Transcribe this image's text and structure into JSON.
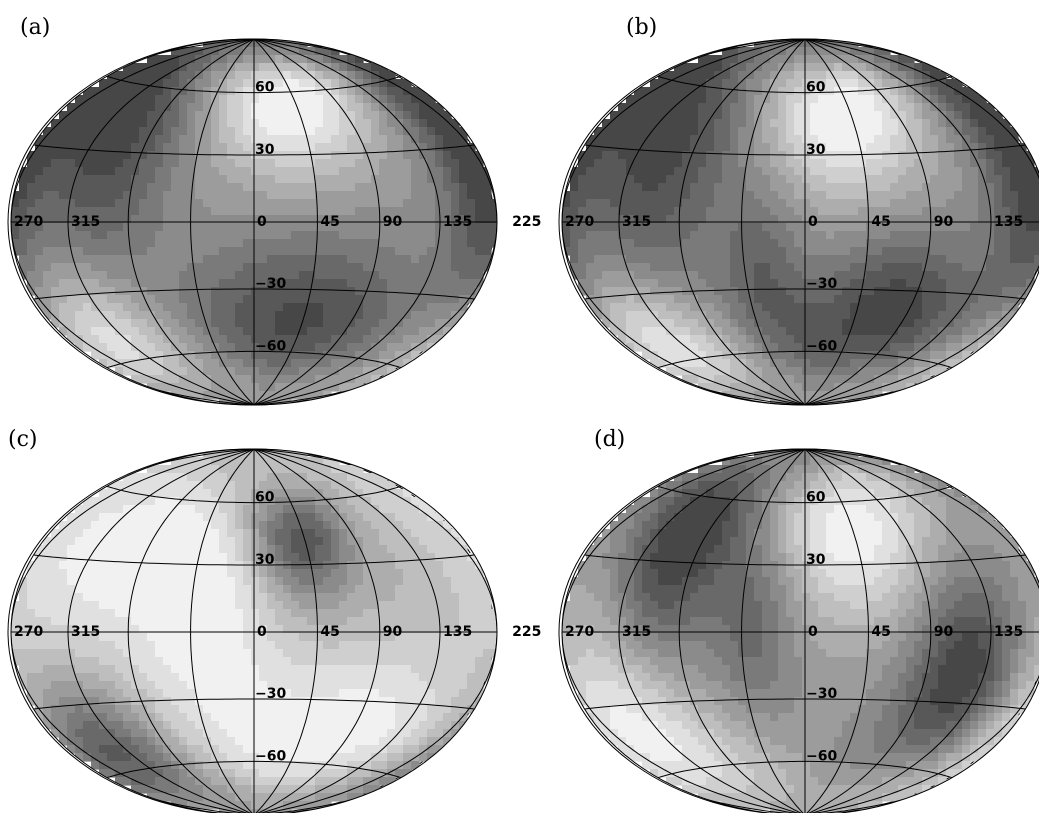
{
  "figure": {
    "projection": "hammer-aitoff",
    "shading": "grayscale contours",
    "grid": {
      "longitude_lines_deg": [
        -150,
        -120,
        -90,
        -60,
        -30,
        0,
        30,
        60,
        90,
        120,
        150
      ],
      "latitude_lines_deg": [
        -60,
        -30,
        0,
        30,
        60
      ],
      "longitude_labels": [
        "225",
        "270",
        "315",
        "0",
        "45",
        "90",
        "135"
      ],
      "latitude_labels": [
        "60",
        "30",
        "−30",
        "−60"
      ]
    },
    "panels": [
      {
        "label": "(a)",
        "dark_regions": [
          {
            "lon": -112,
            "lat": 40,
            "wl": 35,
            "wb": 45,
            "level": 0.85
          },
          {
            "lon": 170,
            "lat": 20,
            "wl": 25,
            "wb": 45,
            "level": 0.85
          },
          {
            "lon": 40,
            "lat": -45,
            "wl": 60,
            "wb": 28,
            "level": 0.8
          }
        ],
        "bright_regions": [
          {
            "lon": 30,
            "lat": 55,
            "wl": 38,
            "wb": 24,
            "level": 1.0
          },
          {
            "lon": -150,
            "lat": -50,
            "wl": 42,
            "wb": 24,
            "level": 1.0
          }
        ]
      },
      {
        "label": "(b)",
        "dark_regions": [
          {
            "lon": -110,
            "lat": 35,
            "wl": 40,
            "wb": 45,
            "level": 0.85
          },
          {
            "lon": 165,
            "lat": 15,
            "wl": 25,
            "wb": 45,
            "level": 0.8
          },
          {
            "lon": 70,
            "lat": -40,
            "wl": 40,
            "wb": 25,
            "level": 0.9
          },
          {
            "lon": -30,
            "lat": -25,
            "wl": 20,
            "wb": 28,
            "level": 0.5
          }
        ],
        "bright_regions": [
          {
            "lon": 30,
            "lat": 50,
            "wl": 38,
            "wb": 26,
            "level": 1.0
          },
          {
            "lon": -155,
            "lat": -50,
            "wl": 38,
            "wb": 22,
            "level": 1.0
          }
        ]
      },
      {
        "label": "(c)",
        "dark_regions": [
          {
            "lon": 35,
            "lat": 42,
            "wl": 22,
            "wb": 18,
            "level": 1.0
          },
          {
            "lon": -145,
            "lat": -50,
            "wl": 30,
            "wb": 22,
            "level": 1.0
          }
        ],
        "bright_regions": [
          {
            "lon": -120,
            "lat": 30,
            "wl": 70,
            "wb": 40,
            "level": 0.8
          },
          {
            "lon": 80,
            "lat": -40,
            "wl": 60,
            "wb": 30,
            "level": 0.8
          },
          {
            "lon": -30,
            "lat": 0,
            "wl": 35,
            "wb": 40,
            "level": 0.6
          }
        ]
      },
      {
        "label": "(d)",
        "dark_regions": [
          {
            "lon": -100,
            "lat": 40,
            "wl": 28,
            "wb": 35,
            "level": 1.0
          },
          {
            "lon": 115,
            "lat": -20,
            "wl": 30,
            "wb": 30,
            "level": 1.0
          },
          {
            "lon": -35,
            "lat": 5,
            "wl": 20,
            "wb": 30,
            "level": 0.5
          }
        ],
        "bright_regions": [
          {
            "lon": 40,
            "lat": 45,
            "wl": 38,
            "wb": 28,
            "level": 0.9
          },
          {
            "lon": -150,
            "lat": -40,
            "wl": 45,
            "wb": 30,
            "level": 0.9
          }
        ]
      }
    ],
    "colors": {
      "dark": "#474747",
      "light": "#f1f1f1",
      "line": "#000000"
    }
  }
}
